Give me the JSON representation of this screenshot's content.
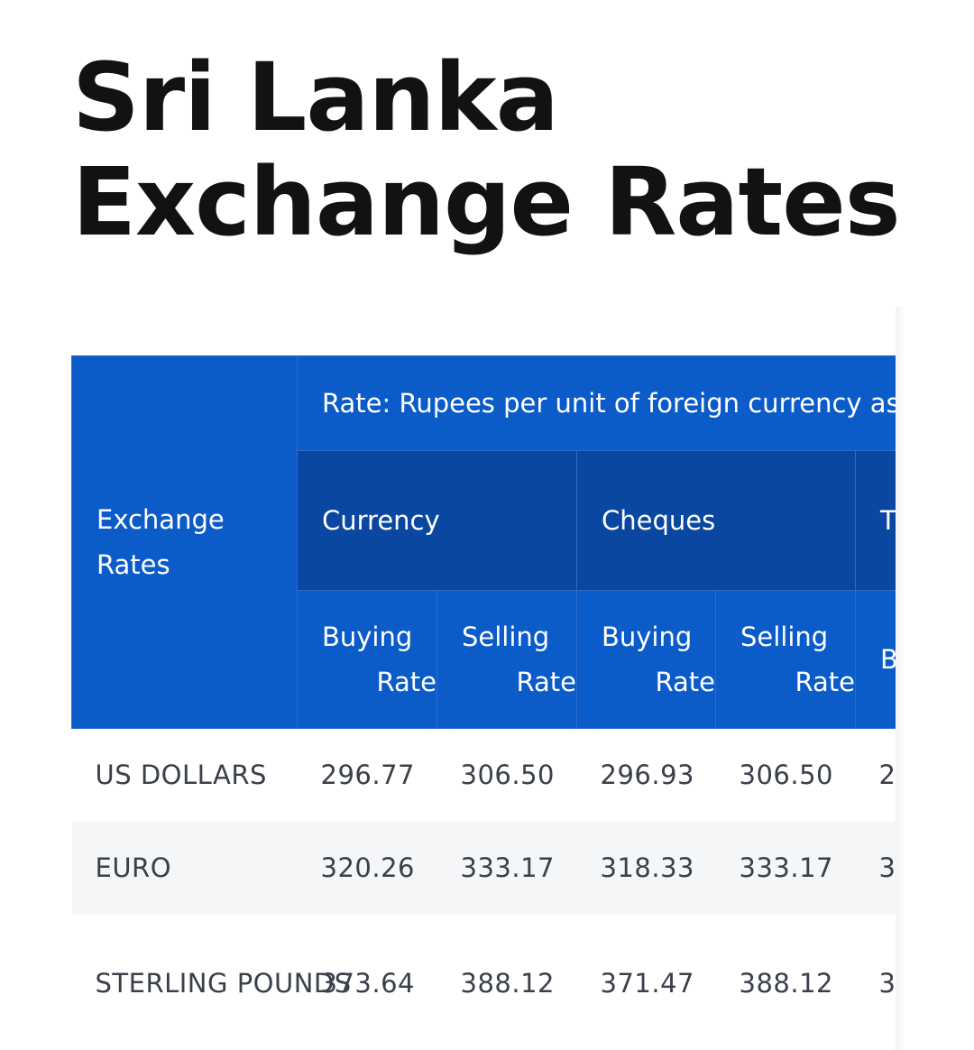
{
  "page": {
    "title": "Sri Lanka Exchange Rates"
  },
  "table": {
    "corner_label": "Exchange Rates",
    "rate_caption": "Rate: Rupees per unit of foreign currency as a",
    "groups": [
      "Currency",
      "Cheques",
      "T T"
    ],
    "subheaders": [
      {
        "line1": "Buying",
        "line2": "Rate"
      },
      {
        "line1": "Selling",
        "line2": "Rate"
      },
      {
        "line1": "Buying",
        "line2": "Rate"
      },
      {
        "line1": "Selling",
        "line2": "Rate"
      },
      {
        "line1": "B",
        "line2": ""
      }
    ],
    "rows": [
      {
        "name": "US DOLLARS",
        "values": [
          "296.77",
          "306.50",
          "296.93",
          "306.50",
          "2"
        ]
      },
      {
        "name": "EURO",
        "values": [
          "320.26",
          "333.17",
          "318.33",
          "333.17",
          "3"
        ]
      },
      {
        "name": "STERLING POUNDS",
        "values": [
          "373.64",
          "388.12",
          "371.47",
          "388.12",
          "3"
        ]
      }
    ]
  },
  "colors": {
    "header_blue": "#0b5bc8",
    "header_dark_blue": "#0a47a0",
    "title_text": "#121212",
    "cell_text": "#3a3f4a",
    "striped_row": "#f5f6f7"
  }
}
